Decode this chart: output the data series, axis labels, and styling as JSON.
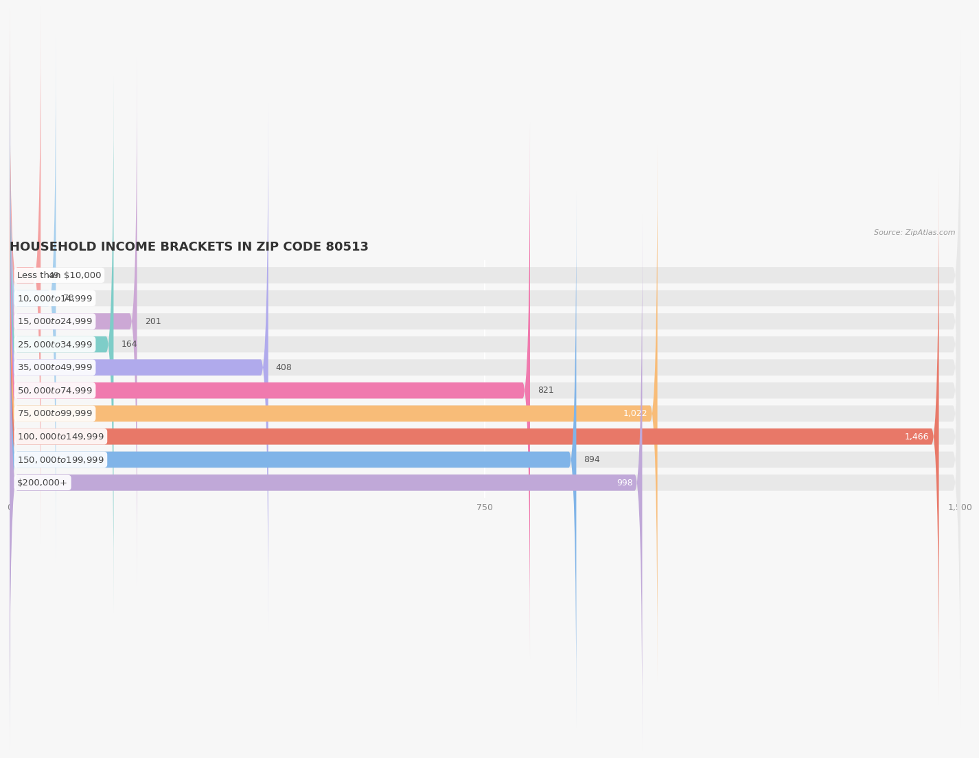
{
  "title": "HOUSEHOLD INCOME BRACKETS IN ZIP CODE 80513",
  "source": "Source: ZipAtlas.com",
  "categories": [
    "Less than $10,000",
    "$10,000 to $14,999",
    "$15,000 to $24,999",
    "$25,000 to $34,999",
    "$35,000 to $49,999",
    "$50,000 to $74,999",
    "$75,000 to $99,999",
    "$100,000 to $149,999",
    "$150,000 to $199,999",
    "$200,000+"
  ],
  "values": [
    49,
    73,
    201,
    164,
    408,
    821,
    1022,
    1466,
    894,
    998
  ],
  "bar_colors": [
    "#F4A0A0",
    "#A8D0EE",
    "#CCA8D5",
    "#7ECDC8",
    "#B0AAEC",
    "#F07AAE",
    "#F8BC78",
    "#E87868",
    "#80B4E8",
    "#C0A8D8"
  ],
  "background_color": "#f7f7f7",
  "bar_bg_color": "#e8e8e8",
  "xlim": [
    0,
    1500
  ],
  "xticks": [
    0,
    750,
    1500
  ],
  "title_fontsize": 13,
  "label_fontsize": 9.5,
  "value_fontsize": 9,
  "value_white_threshold": 900
}
